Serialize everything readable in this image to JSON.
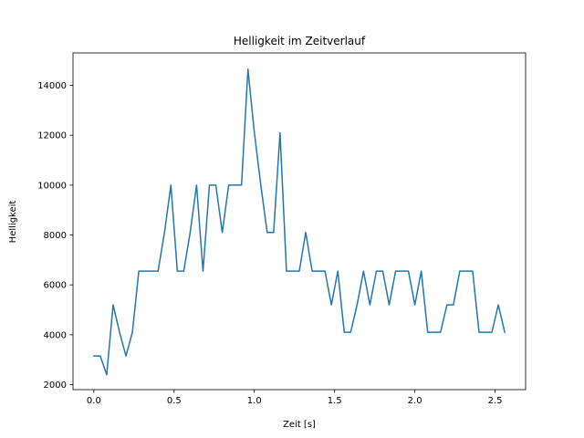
{
  "chart_data": {
    "type": "line",
    "title": "Helligkeit im Zeitverlauf",
    "xlabel": "Zeit [s]",
    "ylabel": "Helligkeit",
    "xlim": [
      -0.13,
      2.69
    ],
    "ylim": [
      1800,
      15300
    ],
    "xticks": [
      0.0,
      0.5,
      1.0,
      1.5,
      2.0,
      2.5
    ],
    "xtick_labels": [
      "0.0",
      "0.5",
      "1.0",
      "1.5",
      "2.0",
      "2.5"
    ],
    "yticks": [
      2000,
      4000,
      6000,
      8000,
      10000,
      12000,
      14000
    ],
    "ytick_labels": [
      "2000",
      "4000",
      "6000",
      "8000",
      "10000",
      "12000",
      "14000"
    ],
    "grid": false,
    "series": [
      {
        "color": "#1f77b4",
        "x": [
          0.0,
          0.04,
          0.08,
          0.12,
          0.16,
          0.2,
          0.24,
          0.28,
          0.32,
          0.36,
          0.4,
          0.44,
          0.48,
          0.52,
          0.56,
          0.6,
          0.64,
          0.68,
          0.72,
          0.76,
          0.8,
          0.84,
          0.88,
          0.92,
          0.96,
          1.0,
          1.04,
          1.08,
          1.12,
          1.16,
          1.2,
          1.24,
          1.28,
          1.32,
          1.36,
          1.4,
          1.44,
          1.48,
          1.52,
          1.56,
          1.6,
          1.64,
          1.68,
          1.72,
          1.76,
          1.8,
          1.84,
          1.88,
          1.92,
          1.96,
          2.0,
          2.04,
          2.08,
          2.12,
          2.16,
          2.2,
          2.24,
          2.28,
          2.32,
          2.36,
          2.4,
          2.44,
          2.48,
          2.52,
          2.56
        ],
        "y": [
          3150,
          3150,
          2400,
          5200,
          4100,
          3150,
          4100,
          6550,
          6550,
          6550,
          6550,
          8100,
          10000,
          6550,
          6550,
          8100,
          10000,
          6550,
          10000,
          10000,
          8100,
          10000,
          10000,
          10000,
          14650,
          12100,
          10000,
          8100,
          8100,
          12100,
          6550,
          6550,
          6550,
          8100,
          6550,
          6550,
          6550,
          5200,
          6550,
          4100,
          4100,
          5200,
          6550,
          5200,
          6550,
          6550,
          5200,
          6550,
          6550,
          6550,
          5200,
          6550,
          4100,
          4100,
          4100,
          5200,
          5200,
          6550,
          6550,
          6550,
          4100,
          4100,
          4100,
          5200,
          4100
        ]
      }
    ]
  }
}
